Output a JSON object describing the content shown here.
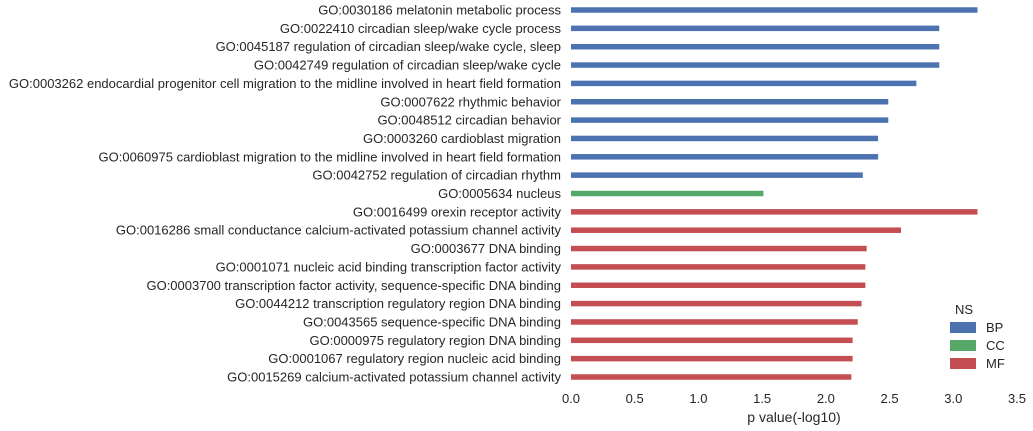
{
  "chart_data": {
    "type": "bar",
    "orientation": "horizontal",
    "xlabel": "p value(-log10)",
    "xlim": [
      0,
      3.5
    ],
    "xticks": [
      "0.0",
      "0.5",
      "1.0",
      "1.5",
      "2.0",
      "2.5",
      "3.0",
      "3.5"
    ],
    "grid": false,
    "legend": {
      "title": "NS",
      "placement": "bottom-right",
      "entries": [
        {
          "name": "BP",
          "color": "#4c72b0"
        },
        {
          "name": "CC",
          "color": "#55a868"
        },
        {
          "name": "MF",
          "color": "#c44e52"
        }
      ]
    },
    "categories": [
      {
        "label": "GO:0030186 melatonin metabolic process",
        "ns": "BP",
        "value": 3.19
      },
      {
        "label": "GO:0022410 circadian sleep/wake cycle process",
        "ns": "BP",
        "value": 2.89
      },
      {
        "label": "GO:0045187 regulation of circadian sleep/wake cycle, sleep",
        "ns": "BP",
        "value": 2.89
      },
      {
        "label": "GO:0042749 regulation of circadian sleep/wake cycle",
        "ns": "BP",
        "value": 2.89
      },
      {
        "label": "GO:0003262 endocardial progenitor cell migration to the midline involved in heart field formation",
        "ns": "BP",
        "value": 2.71
      },
      {
        "label": "GO:0007622 rhythmic behavior",
        "ns": "BP",
        "value": 2.49
      },
      {
        "label": "GO:0048512 circadian behavior",
        "ns": "BP",
        "value": 2.49
      },
      {
        "label": "GO:0003260 cardioblast migration",
        "ns": "BP",
        "value": 2.41
      },
      {
        "label": "GO:0060975 cardioblast migration to the midline involved in heart field formation",
        "ns": "BP",
        "value": 2.41
      },
      {
        "label": "GO:0042752 regulation of circadian rhythm",
        "ns": "BP",
        "value": 2.29
      },
      {
        "label": "GO:0005634 nucleus",
        "ns": "CC",
        "value": 1.51
      },
      {
        "label": "GO:0016499 orexin receptor activity",
        "ns": "MF",
        "value": 3.19
      },
      {
        "label": "GO:0016286 small conductance calcium-activated potassium channel activity",
        "ns": "MF",
        "value": 2.59
      },
      {
        "label": "GO:0003677 DNA binding",
        "ns": "MF",
        "value": 2.32
      },
      {
        "label": "GO:0001071 nucleic acid binding transcription factor activity",
        "ns": "MF",
        "value": 2.31
      },
      {
        "label": "GO:0003700 transcription factor activity, sequence-specific DNA binding",
        "ns": "MF",
        "value": 2.31
      },
      {
        "label": "GO:0044212 transcription regulatory region DNA binding",
        "ns": "MF",
        "value": 2.28
      },
      {
        "label": "GO:0043565 sequence-specific DNA binding",
        "ns": "MF",
        "value": 2.25
      },
      {
        "label": "GO:0000975 regulatory region DNA binding",
        "ns": "MF",
        "value": 2.21
      },
      {
        "label": "GO:0001067 regulatory region nucleic acid binding",
        "ns": "MF",
        "value": 2.21
      },
      {
        "label": "GO:0015269 calcium-activated potassium channel activity",
        "ns": "MF",
        "value": 2.2
      }
    ]
  }
}
